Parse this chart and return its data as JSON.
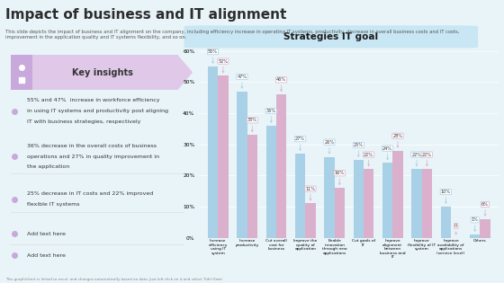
{
  "title": "Impact of business and IT alignment",
  "subtitle": "This slide depicts the impact of business and IT alignment on the company, including efficiency increase in operating IT systems, productivity, decrease in overall business costs and IT costs,\nimprovement in the application quality and IT systems flexibility, and so on.",
  "chart_title": "Strategies IT goal",
  "categories": [
    "Increase\nefficiency\nusing IT\nsystem",
    "Increase\nproductivity",
    "Cut overall\ncost for\nbusiness",
    "Improve the\nquality of\napplication",
    "Enable\ninnovation\nthrough new\napplications",
    "Cut goals of\nIT",
    "Improve\nalignment\nbetween\nbusiness and\nIT",
    "Improve\nflexibility of IT\nsystem",
    "Improve\navailability of\napplications\n(service level)",
    "Others"
  ],
  "values_2022": [
    55,
    47,
    36,
    27,
    26,
    25,
    24,
    22,
    10,
    1
  ],
  "values_2023": [
    52,
    33,
    46,
    11,
    16,
    22,
    28,
    22,
    0,
    6
  ],
  "color_2022": "#a8d0e6",
  "color_2023": "#dbb0cc",
  "background_color": "#e8f4f8",
  "left_panel_bg": "#ffffff",
  "ylim": [
    0,
    60
  ],
  "yticks": [
    0,
    10,
    20,
    30,
    40,
    50,
    60
  ],
  "key_insights_title": "Key insights",
  "key_insights": [
    "55% and 47%  increase in workforce efficiency\nin using IT systems and productivity post aligning\nIT with business strategies, respectively",
    "36% decrease in the overall costs of business\noperations and 27% in quality improvement in\nthe application",
    "25% decrease in IT costs and 22% improved\nflexible IT systems",
    "Add text here",
    "Add text here"
  ],
  "footer": "This graph/chart is linked to excel, and changes automatically based on data. Just left click on it and select 'Edit Data'.",
  "header_color": "#c8e6f4",
  "insights_header_color": "#e0c8e8",
  "insights_icon_color": "#c9a8dc",
  "bullet_color": "#c9a8dc",
  "divider_color": "#dddddd"
}
